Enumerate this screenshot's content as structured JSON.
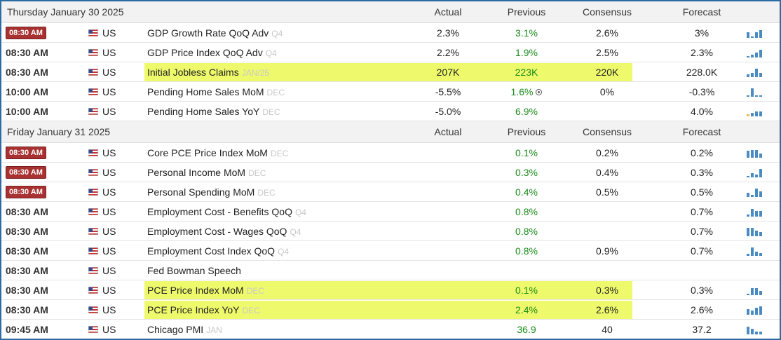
{
  "colors": {
    "frame_border": "#2e6aa3",
    "highlight": "#eefa6b",
    "time_badge": "#a83232",
    "positive_green": "#1a8a1a",
    "sparkline_blue": "#4a8cc2",
    "sparkline_orange": "#f0b860"
  },
  "columns": {
    "actual": "Actual",
    "previous": "Previous",
    "consensus": "Consensus",
    "forecast": "Forecast"
  },
  "sections": [
    {
      "date": "Thursday January 30 2025",
      "events": [
        {
          "time": "08:30 AM",
          "badge": true,
          "country": "US",
          "flag_icon": "us-flag-icon",
          "event": "GDP Growth Rate QoQ Adv",
          "ref": "Q4",
          "actual": "2.3%",
          "previous": "3.1%",
          "consensus": "2.6%",
          "forecast": "3%",
          "spark": [
            0.6,
            0.15,
            0.6,
            0.75
          ],
          "highlight": false
        },
        {
          "time": "08:30 AM",
          "badge": false,
          "country": "US",
          "flag_icon": "us-flag-icon",
          "event": "GDP Price Index QoQ Adv",
          "ref": "Q4",
          "actual": "2.2%",
          "previous": "1.9%",
          "consensus": "2.5%",
          "forecast": "2.3%",
          "spark": [
            0.12,
            0.3,
            0.5,
            0.8
          ],
          "highlight": false
        },
        {
          "time": "08:30 AM",
          "badge": false,
          "country": "US",
          "flag_icon": "us-flag-icon",
          "event": "Initial Jobless Claims",
          "ref": "JAN/25",
          "actual": "207K",
          "previous": "223K",
          "consensus": "220K",
          "forecast": "228.0K",
          "spark": [
            0.3,
            0.45,
            0.85,
            0.4
          ],
          "highlight": true
        },
        {
          "time": "10:00 AM",
          "badge": false,
          "country": "US",
          "flag_icon": "us-flag-icon",
          "event": "Pending Home Sales MoM",
          "ref": "DEC",
          "actual": "-5.5%",
          "previous": "1.6%",
          "previous_revised": true,
          "consensus": "0%",
          "forecast": "-0.3%",
          "spark": [
            0.15,
            0.85,
            0.1,
            0.15
          ],
          "highlight": false
        },
        {
          "time": "10:00 AM",
          "badge": false,
          "country": "US",
          "flag_icon": "us-flag-icon",
          "event": "Pending Home Sales YoY",
          "ref": "DEC",
          "actual": "-5.0%",
          "previous": "6.9%",
          "consensus": "",
          "forecast": "4.0%",
          "spark": [
            0.2,
            0.35,
            0.5,
            0.5
          ],
          "spark_first_orange": true,
          "highlight": false
        }
      ]
    },
    {
      "date": "Friday January 31 2025",
      "events": [
        {
          "time": "08:30 AM",
          "badge": true,
          "country": "US",
          "flag_icon": "us-flag-icon",
          "event": "Core PCE Price Index MoM",
          "ref": "DEC",
          "actual": "",
          "previous": "0.1%",
          "consensus": "0.2%",
          "forecast": "0.2%",
          "spark": [
            0.7,
            0.8,
            0.8,
            0.45
          ],
          "highlight": false
        },
        {
          "time": "08:30 AM",
          "badge": true,
          "country": "US",
          "flag_icon": "us-flag-icon",
          "event": "Personal Income MoM",
          "ref": "DEC",
          "actual": "",
          "previous": "0.3%",
          "consensus": "0.4%",
          "forecast": "0.3%",
          "spark": [
            0.15,
            0.45,
            0.3,
            0.85
          ],
          "highlight": false
        },
        {
          "time": "08:30 AM",
          "badge": true,
          "country": "US",
          "flag_icon": "us-flag-icon",
          "event": "Personal Spending MoM",
          "ref": "DEC",
          "actual": "",
          "previous": "0.4%",
          "consensus": "0.5%",
          "forecast": "0.5%",
          "spark": [
            0.4,
            0.2,
            0.85,
            0.6
          ],
          "highlight": false
        },
        {
          "time": "08:30 AM",
          "badge": false,
          "country": "US",
          "flag_icon": "us-flag-icon",
          "event": "Employment Cost - Benefits QoQ",
          "ref": "Q4",
          "actual": "",
          "previous": "0.8%",
          "consensus": "",
          "forecast": "0.7%",
          "spark": [
            0.2,
            0.8,
            0.55,
            0.55
          ],
          "highlight": false
        },
        {
          "time": "08:30 AM",
          "badge": false,
          "country": "US",
          "flag_icon": "us-flag-icon",
          "event": "Employment Cost - Wages QoQ",
          "ref": "Q4",
          "actual": "",
          "previous": "0.8%",
          "consensus": "",
          "forecast": "0.7%",
          "spark": [
            0.85,
            0.85,
            0.55,
            0.4
          ],
          "highlight": false
        },
        {
          "time": "08:30 AM",
          "badge": false,
          "country": "US",
          "flag_icon": "us-flag-icon",
          "event": "Employment Cost Index QoQ",
          "ref": "Q4",
          "actual": "",
          "previous": "0.8%",
          "consensus": "0.9%",
          "forecast": "0.7%",
          "spark": [
            0.2,
            0.85,
            0.4,
            0.3
          ],
          "highlight": false
        },
        {
          "time": "08:30 AM",
          "badge": false,
          "country": "US",
          "flag_icon": "us-flag-icon",
          "event": "Fed Bowman Speech",
          "ref": "",
          "actual": "",
          "previous": "",
          "consensus": "",
          "forecast": "",
          "spark": [],
          "highlight": false
        },
        {
          "time": "08:30 AM",
          "badge": false,
          "country": "US",
          "flag_icon": "us-flag-icon",
          "event": "PCE Price Index MoM",
          "ref": "DEC",
          "actual": "",
          "previous": "0.1%",
          "consensus": "0.3%",
          "forecast": "0.3%",
          "spark": [
            0.15,
            0.7,
            0.7,
            0.45
          ],
          "highlight": true
        },
        {
          "time": "08:30 AM",
          "badge": false,
          "country": "US",
          "flag_icon": "us-flag-icon",
          "event": "PCE Price Index YoY",
          "ref": "DEC",
          "actual": "",
          "previous": "2.4%",
          "consensus": "2.6%",
          "forecast": "2.6%",
          "spark": [
            0.55,
            0.45,
            0.7,
            0.85
          ],
          "highlight": true
        },
        {
          "time": "09:45 AM",
          "badge": false,
          "country": "US",
          "flag_icon": "us-flag-icon",
          "event": "Chicago PMI",
          "ref": "JAN",
          "actual": "",
          "previous": "36.9",
          "consensus": "40",
          "forecast": "37.2",
          "spark": [
            0.75,
            0.55,
            0.3,
            0.3
          ],
          "highlight": false
        }
      ]
    }
  ]
}
